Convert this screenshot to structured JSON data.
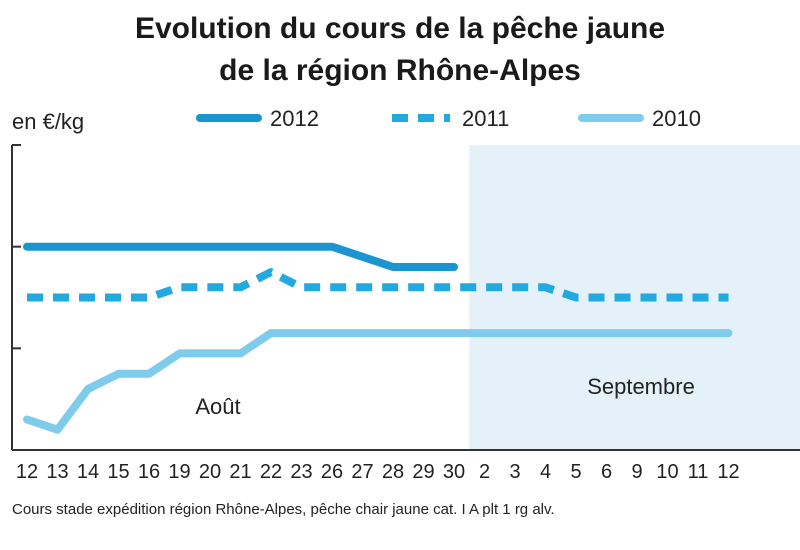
{
  "chart_data": {
    "type": "line",
    "title_lines": [
      "Evolution du cours de la pêche jaune",
      "de la région Rhône-Alpes"
    ],
    "unit_label": "en €/kg",
    "footnote": "Cours stade expédition région Rhône-Alpes, pêche chair jaune cat. I A plt 1 rg alv.",
    "month_labels": [
      {
        "label": "Août",
        "at": "20"
      },
      {
        "label": "Septembre",
        "at": "9"
      }
    ],
    "x": [
      "12",
      "13",
      "14",
      "15",
      "16",
      "19",
      "20",
      "21",
      "22",
      "23",
      "26",
      "27",
      "28",
      "29",
      "30",
      "2",
      "3",
      "4",
      "5",
      "6",
      "9",
      "10",
      "11",
      "12"
    ],
    "shaded_from": "2",
    "legend_placement": "top",
    "series": [
      {
        "name": "2012",
        "style": "solid",
        "color": "#1b95d0",
        "values": [
          3.0,
          3.0,
          3.0,
          3.0,
          3.0,
          3.0,
          3.0,
          3.0,
          3.0,
          3.0,
          3.0,
          2.9,
          2.8,
          2.8,
          2.8,
          null,
          null,
          null,
          null,
          null,
          null,
          null,
          null,
          null
        ]
      },
      {
        "name": "2011",
        "style": "dashed",
        "color": "#22a9e0",
        "values": [
          2.5,
          2.5,
          2.5,
          2.5,
          2.5,
          2.6,
          2.6,
          2.6,
          2.75,
          2.6,
          2.6,
          2.6,
          2.6,
          2.6,
          2.6,
          2.6,
          2.6,
          2.6,
          2.5,
          2.5,
          2.5,
          2.5,
          2.5,
          2.5
        ]
      },
      {
        "name": "2010",
        "style": "solid",
        "color": "#7fcbeb",
        "values": [
          1.3,
          1.2,
          1.6,
          1.75,
          1.75,
          1.95,
          1.95,
          1.95,
          2.15,
          2.15,
          2.15,
          2.15,
          2.15,
          2.15,
          2.15,
          2.15,
          2.15,
          2.15,
          2.15,
          2.15,
          2.15,
          2.15,
          2.15,
          2.15
        ]
      }
    ],
    "y_ticks": [
      2,
      3
    ],
    "ylim": [
      1,
      4
    ],
    "grid": false
  }
}
